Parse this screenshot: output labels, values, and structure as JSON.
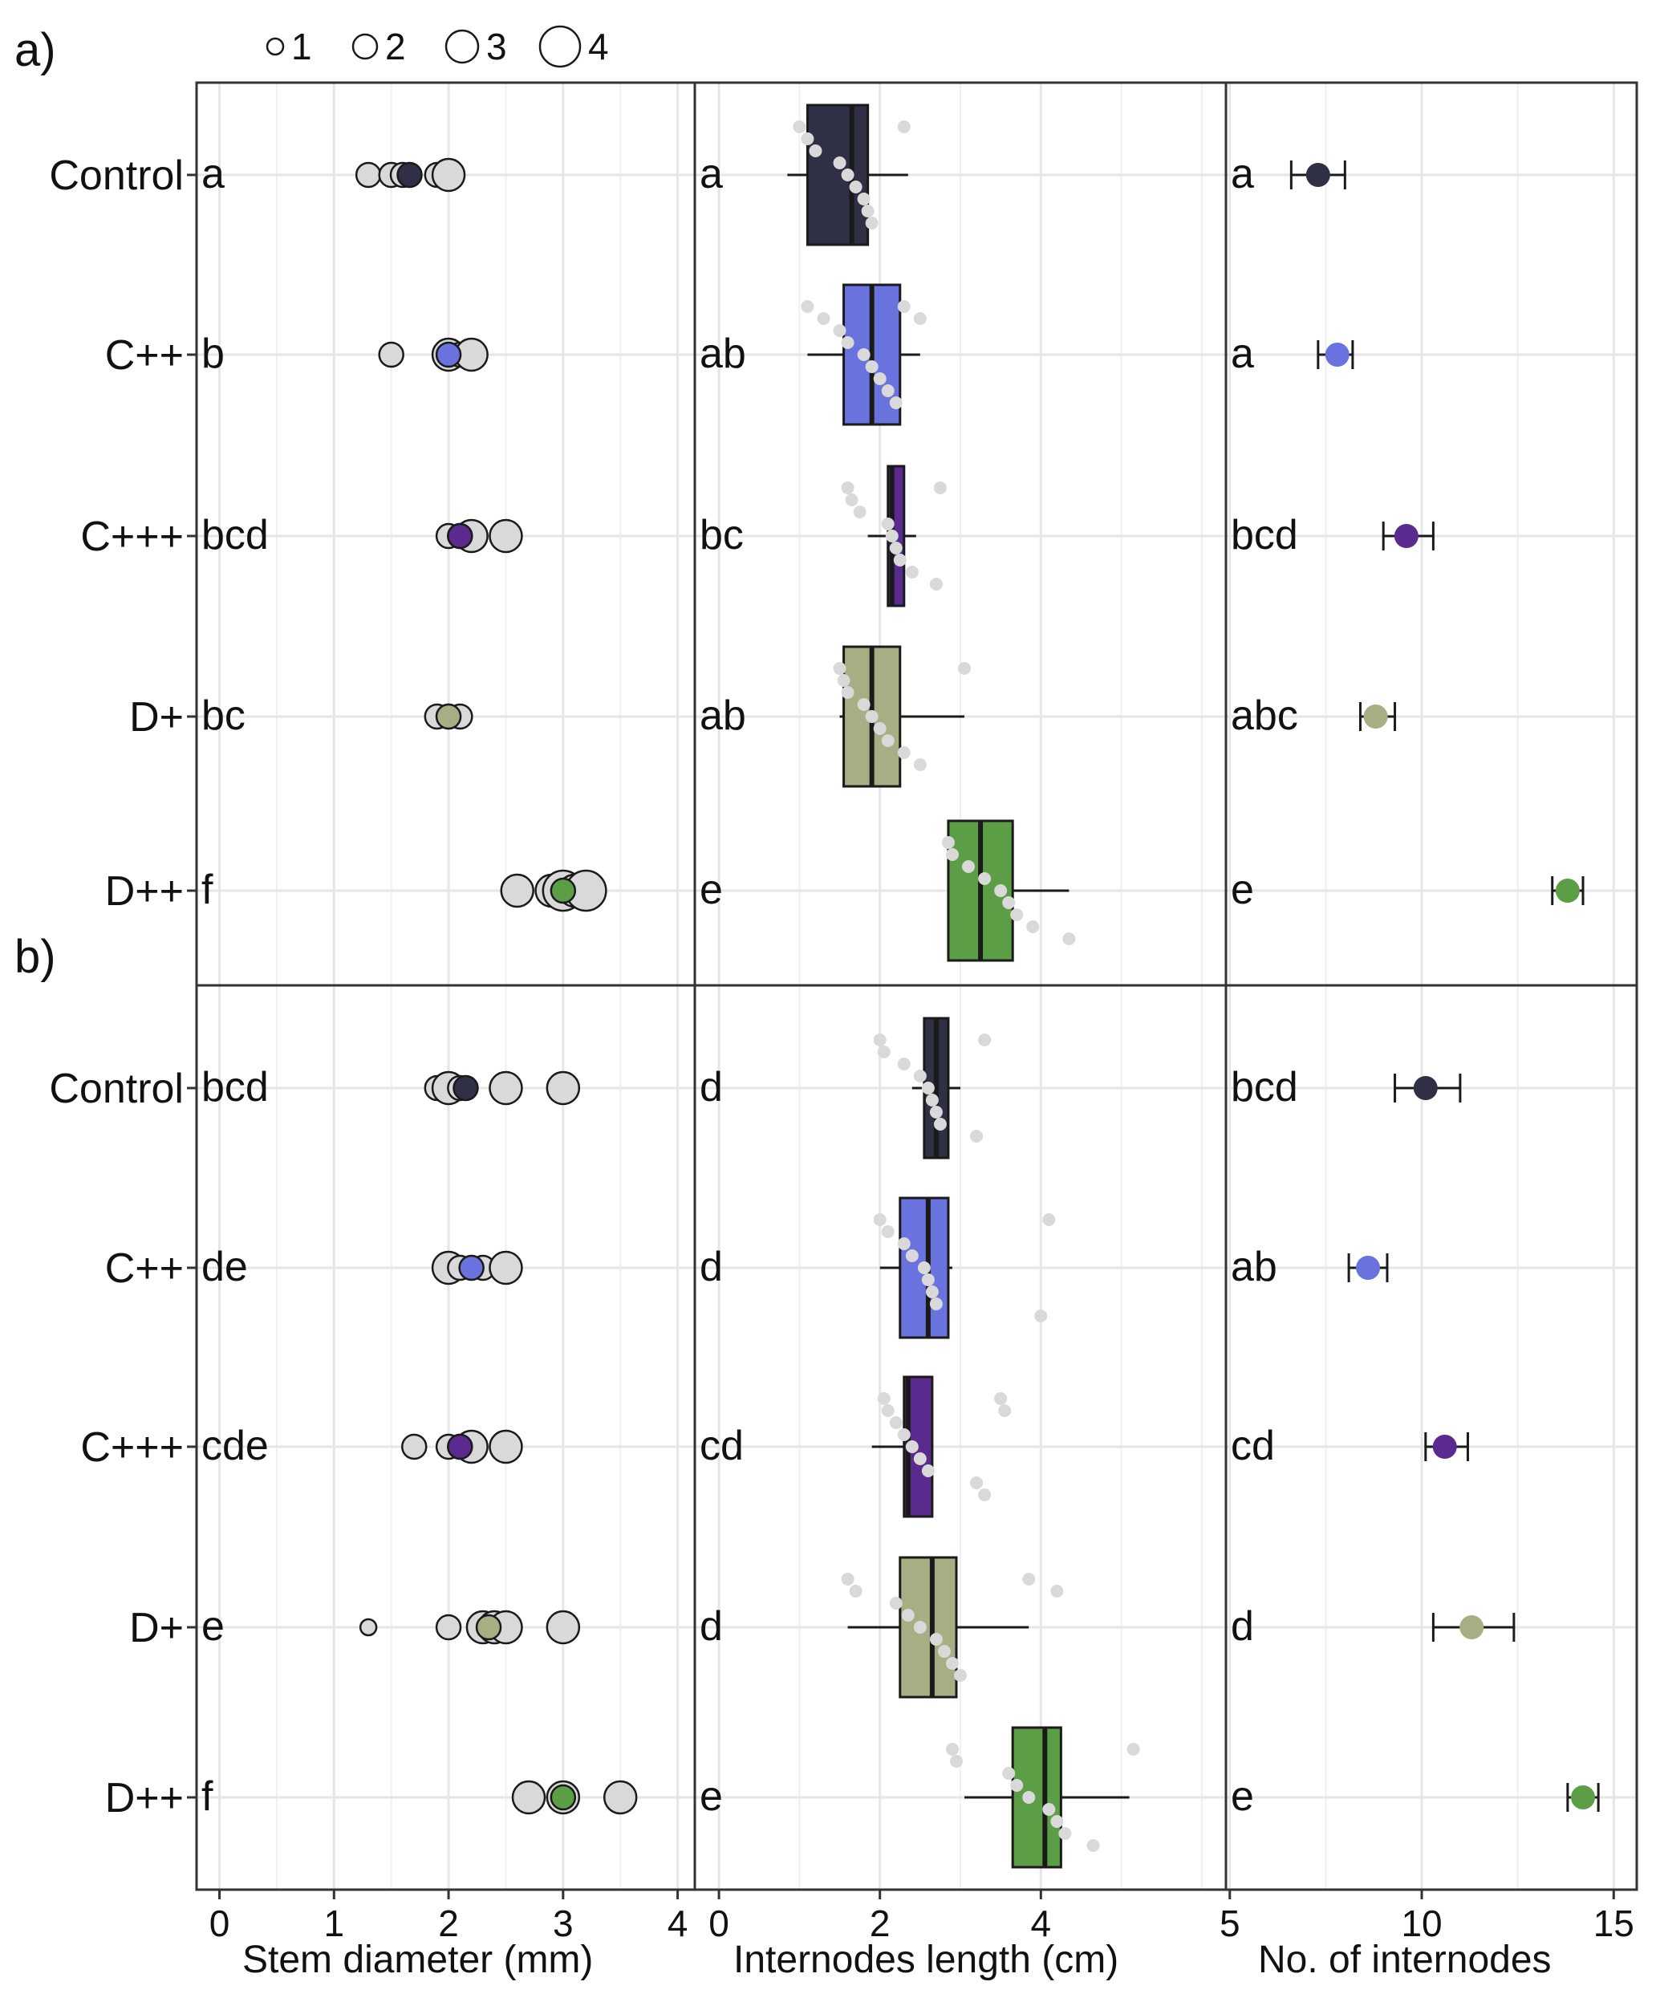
{
  "legend": {
    "size_labels": [
      "1",
      "2",
      "3",
      "4"
    ]
  },
  "colors": {
    "Control": "#2f2f45",
    "C++": "#6a72de",
    "C+++": "#5b2a8e",
    "D+": "#a8ae84",
    "D++": "#5c9e45",
    "raw_point": "#d9d9d9",
    "grid": "#e6e6e6",
    "frame": "#333333"
  },
  "chart_data": {
    "type": "scatter+box",
    "panel_labels": [
      "a)",
      "b)"
    ],
    "treatments": [
      "Control",
      "C++",
      "C+++",
      "D+",
      "D++"
    ],
    "columns": [
      {
        "key": "stem",
        "xlabel": "Stem diameter (mm)",
        "xlim": [
          -0.2,
          4.15
        ],
        "ticks": [
          0,
          1,
          2,
          3,
          4
        ],
        "tick_labels": [
          "0",
          "1",
          "2",
          "3",
          "4"
        ],
        "minor_ticks": [
          0.5,
          1.5,
          2.5,
          3.5
        ]
      },
      {
        "key": "internode",
        "xlabel": "Internodes length (cm)",
        "xlim": [
          -0.3,
          6.3
        ],
        "ticks": [
          0,
          2,
          4
        ],
        "tick_labels": [
          "0",
          "2",
          "4"
        ],
        "minor_ticks": [
          1,
          3,
          5,
          6
        ]
      },
      {
        "key": "count",
        "xlabel": "No. of internodes",
        "xlim": [
          4.9,
          15.6
        ],
        "ticks": [
          5,
          10,
          15
        ],
        "tick_labels": [
          "5",
          "10",
          "15"
        ],
        "minor_ticks": [
          7.5,
          12.5
        ]
      }
    ],
    "panels": [
      {
        "label": "a)",
        "rows": [
          {
            "treatment": "Control",
            "stem_letter": "a",
            "stem_points": [
              {
                "x": 1.3,
                "n": 2
              },
              {
                "x": 1.5,
                "n": 2
              },
              {
                "x": 1.6,
                "n": 2
              },
              {
                "x": 1.9,
                "n": 2
              },
              {
                "x": 2.0,
                "n": 3
              }
            ],
            "stem_mean": 1.66,
            "internode_letter": "a",
            "box": {
              "whisker_low": 0.85,
              "q1": 1.1,
              "median": 1.65,
              "q3": 1.85,
              "whisker_high": 2.35
            },
            "internode_points": [
              1.0,
              1.1,
              1.2,
              1.5,
              1.6,
              1.7,
              1.8,
              1.85,
              1.9,
              2.3
            ],
            "count_letter": "a",
            "count_mean": 7.3,
            "count_err": [
              6.6,
              8.0
            ]
          },
          {
            "treatment": "C++",
            "stem_letter": "b",
            "stem_points": [
              {
                "x": 1.5,
                "n": 2
              },
              {
                "x": 2.0,
                "n": 3
              },
              {
                "x": 2.1,
                "n": 2
              },
              {
                "x": 2.2,
                "n": 3
              }
            ],
            "stem_mean": 2.0,
            "internode_letter": "ab",
            "box": {
              "whisker_low": 1.1,
              "q1": 1.55,
              "median": 1.9,
              "q3": 2.25,
              "whisker_high": 2.5
            },
            "internode_points": [
              1.1,
              1.3,
              1.5,
              1.6,
              1.8,
              1.9,
              2.0,
              2.1,
              2.2,
              2.3,
              2.5
            ],
            "count_letter": "a",
            "count_mean": 7.8,
            "count_err": [
              7.3,
              8.2
            ]
          },
          {
            "treatment": "C+++",
            "stem_letter": "bcd",
            "stem_points": [
              {
                "x": 2.0,
                "n": 2
              },
              {
                "x": 2.1,
                "n": 2
              },
              {
                "x": 2.2,
                "n": 3
              },
              {
                "x": 2.5,
                "n": 3
              }
            ],
            "stem_mean": 2.1,
            "internode_letter": "bc",
            "box": {
              "whisker_low": 1.85,
              "q1": 2.1,
              "median": 2.15,
              "q3": 2.3,
              "whisker_high": 2.45
            },
            "internode_points": [
              1.6,
              1.65,
              1.75,
              2.1,
              2.15,
              2.2,
              2.25,
              2.4,
              2.7,
              2.75
            ],
            "count_letter": "bcd",
            "count_mean": 9.6,
            "count_err": [
              9.0,
              10.3
            ]
          },
          {
            "treatment": "D+",
            "stem_letter": "bc",
            "stem_points": [
              {
                "x": 1.9,
                "n": 2
              },
              {
                "x": 2.0,
                "n": 2
              },
              {
                "x": 2.1,
                "n": 2
              }
            ],
            "stem_mean": 2.0,
            "internode_letter": "ab",
            "box": {
              "whisker_low": 1.5,
              "q1": 1.55,
              "median": 1.9,
              "q3": 2.25,
              "whisker_high": 3.05
            },
            "internode_points": [
              1.5,
              1.55,
              1.6,
              1.8,
              1.9,
              2.0,
              2.1,
              2.3,
              2.5,
              3.05
            ],
            "count_letter": "abc",
            "count_mean": 8.8,
            "count_err": [
              8.4,
              9.3
            ]
          },
          {
            "treatment": "D++",
            "stem_letter": "f",
            "stem_points": [
              {
                "x": 2.6,
                "n": 3
              },
              {
                "x": 2.9,
                "n": 3
              },
              {
                "x": 3.0,
                "n": 4
              },
              {
                "x": 3.1,
                "n": 3
              },
              {
                "x": 3.2,
                "n": 4
              }
            ],
            "stem_mean": 3.0,
            "internode_letter": "e",
            "box": {
              "whisker_low": 2.85,
              "q1": 2.85,
              "median": 3.25,
              "q3": 3.65,
              "whisker_high": 4.35
            },
            "internode_points": [
              2.85,
              2.9,
              3.1,
              3.3,
              3.5,
              3.6,
              3.7,
              3.9,
              4.35
            ],
            "count_letter": "e",
            "count_mean": 13.8,
            "count_err": [
              13.4,
              14.2
            ]
          }
        ]
      },
      {
        "label": "b)",
        "rows": [
          {
            "treatment": "Control",
            "stem_letter": "bcd",
            "stem_points": [
              {
                "x": 1.9,
                "n": 2
              },
              {
                "x": 2.0,
                "n": 3
              },
              {
                "x": 2.1,
                "n": 2
              },
              {
                "x": 2.5,
                "n": 3
              },
              {
                "x": 3.0,
                "n": 3
              }
            ],
            "stem_mean": 2.15,
            "internode_letter": "d",
            "box": {
              "whisker_low": 2.4,
              "q1": 2.55,
              "median": 2.7,
              "q3": 2.85,
              "whisker_high": 3.0
            },
            "internode_points": [
              2.0,
              2.05,
              2.3,
              2.5,
              2.6,
              2.65,
              2.7,
              2.75,
              3.2,
              3.3
            ],
            "count_letter": "bcd",
            "count_mean": 10.1,
            "count_err": [
              9.3,
              11.0
            ]
          },
          {
            "treatment": "C++",
            "stem_letter": "de",
            "stem_points": [
              {
                "x": 2.0,
                "n": 3
              },
              {
                "x": 2.1,
                "n": 2
              },
              {
                "x": 2.3,
                "n": 2
              },
              {
                "x": 2.5,
                "n": 3
              }
            ],
            "stem_mean": 2.2,
            "internode_letter": "d",
            "box": {
              "whisker_low": 2.0,
              "q1": 2.25,
              "median": 2.6,
              "q3": 2.85,
              "whisker_high": 2.9
            },
            "internode_points": [
              2.0,
              2.1,
              2.3,
              2.4,
              2.55,
              2.6,
              2.65,
              2.7,
              4.0,
              4.1
            ],
            "count_letter": "ab",
            "count_mean": 8.6,
            "count_err": [
              8.1,
              9.1
            ]
          },
          {
            "treatment": "C+++",
            "stem_letter": "cde",
            "stem_points": [
              {
                "x": 1.7,
                "n": 2
              },
              {
                "x": 2.0,
                "n": 2
              },
              {
                "x": 2.1,
                "n": 2
              },
              {
                "x": 2.2,
                "n": 3
              },
              {
                "x": 2.5,
                "n": 3
              }
            ],
            "stem_mean": 2.1,
            "internode_letter": "cd",
            "box": {
              "whisker_low": 1.9,
              "q1": 2.3,
              "median": 2.35,
              "q3": 2.65,
              "whisker_high": 2.65
            },
            "internode_points": [
              2.05,
              2.1,
              2.2,
              2.3,
              2.4,
              2.5,
              2.6,
              3.2,
              3.3,
              3.5,
              3.55
            ],
            "count_letter": "cd",
            "count_mean": 10.6,
            "count_err": [
              10.1,
              11.2
            ]
          },
          {
            "treatment": "D+",
            "stem_letter": "e",
            "stem_points": [
              {
                "x": 1.3,
                "n": 1
              },
              {
                "x": 2.0,
                "n": 2
              },
              {
                "x": 2.3,
                "n": 3
              },
              {
                "x": 2.4,
                "n": 3
              },
              {
                "x": 2.5,
                "n": 3
              },
              {
                "x": 3.0,
                "n": 3
              }
            ],
            "stem_mean": 2.35,
            "internode_letter": "d",
            "box": {
              "whisker_low": 1.6,
              "q1": 2.25,
              "median": 2.65,
              "q3": 2.95,
              "whisker_high": 3.85
            },
            "internode_points": [
              1.6,
              1.7,
              2.2,
              2.35,
              2.5,
              2.7,
              2.8,
              2.9,
              3.0,
              3.85,
              4.2
            ],
            "count_letter": "d",
            "count_mean": 11.3,
            "count_err": [
              10.3,
              12.4
            ]
          },
          {
            "treatment": "D++",
            "stem_letter": "f",
            "stem_points": [
              {
                "x": 2.7,
                "n": 3
              },
              {
                "x": 3.0,
                "n": 3
              },
              {
                "x": 3.5,
                "n": 3
              }
            ],
            "stem_mean": 3.0,
            "internode_letter": "e",
            "box": {
              "whisker_low": 3.05,
              "q1": 3.65,
              "median": 4.05,
              "q3": 4.25,
              "whisker_high": 5.1
            },
            "internode_points": [
              2.9,
              2.95,
              3.6,
              3.7,
              3.85,
              4.1,
              4.2,
              4.3,
              4.65,
              5.15
            ],
            "count_letter": "e",
            "count_mean": 14.2,
            "count_err": [
              13.8,
              14.6
            ]
          }
        ]
      }
    ]
  }
}
